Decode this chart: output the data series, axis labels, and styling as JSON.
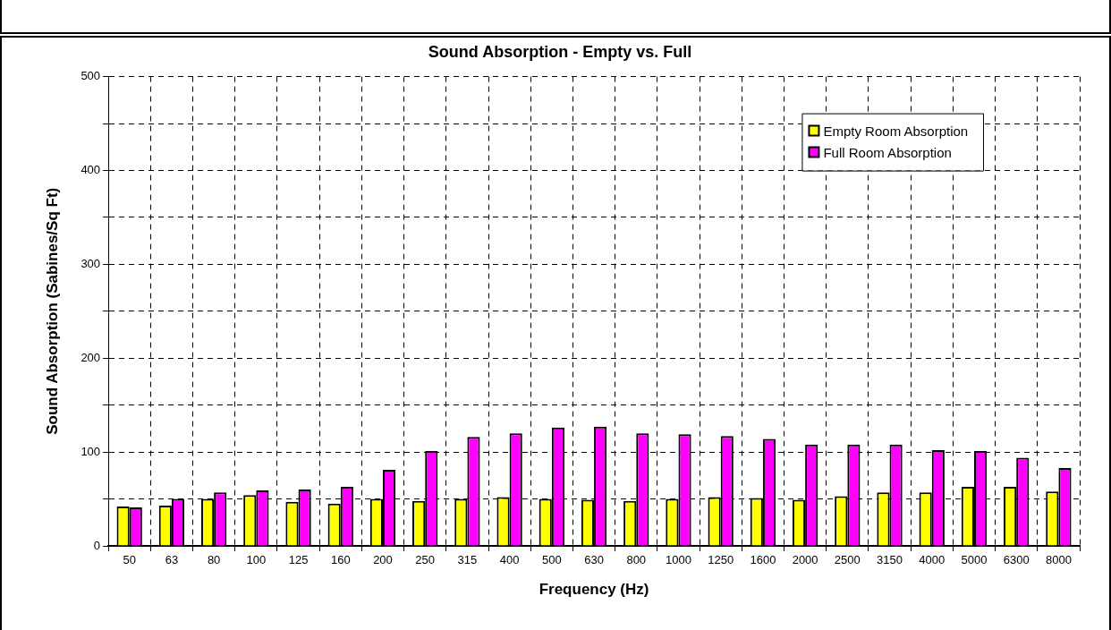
{
  "chart_data": {
    "type": "bar",
    "title": "Sound Absorption - Empty vs. Full",
    "xlabel": "Frequency (Hz)",
    "ylabel": "Sound Absorption (Sabines/Sq Ft)",
    "categories": [
      "50",
      "63",
      "80",
      "100",
      "125",
      "160",
      "200",
      "250",
      "315",
      "400",
      "500",
      "630",
      "800",
      "1000",
      "1250",
      "1600",
      "2000",
      "2500",
      "3150",
      "4000",
      "5000",
      "6300",
      "8000"
    ],
    "series": [
      {
        "name": "Empty Room Absorption",
        "color": "#ffff00",
        "values": [
          42,
          43,
          50,
          54,
          47,
          45,
          50,
          48,
          50,
          52,
          50,
          49,
          48,
          50,
          52,
          51,
          49,
          53,
          57,
          57,
          63,
          63,
          58
        ]
      },
      {
        "name": "Full Room Absorption",
        "color": "#ff00ff",
        "values": [
          41,
          50,
          57,
          59,
          60,
          63,
          81,
          101,
          116,
          120,
          126,
          127,
          120,
          119,
          117,
          114,
          108,
          108,
          108,
          102,
          101,
          94,
          83
        ]
      }
    ],
    "ylim": [
      0,
      500
    ],
    "yticks": [
      0,
      {
        "value": 50,
        "label": null
      },
      100,
      {
        "value": 150,
        "label": null
      },
      200,
      {
        "value": 250,
        "label": null
      },
      300,
      {
        "value": 350,
        "label": null
      },
      400,
      {
        "value": 450,
        "label": null
      },
      500
    ],
    "grid": true,
    "legend": "top right"
  }
}
